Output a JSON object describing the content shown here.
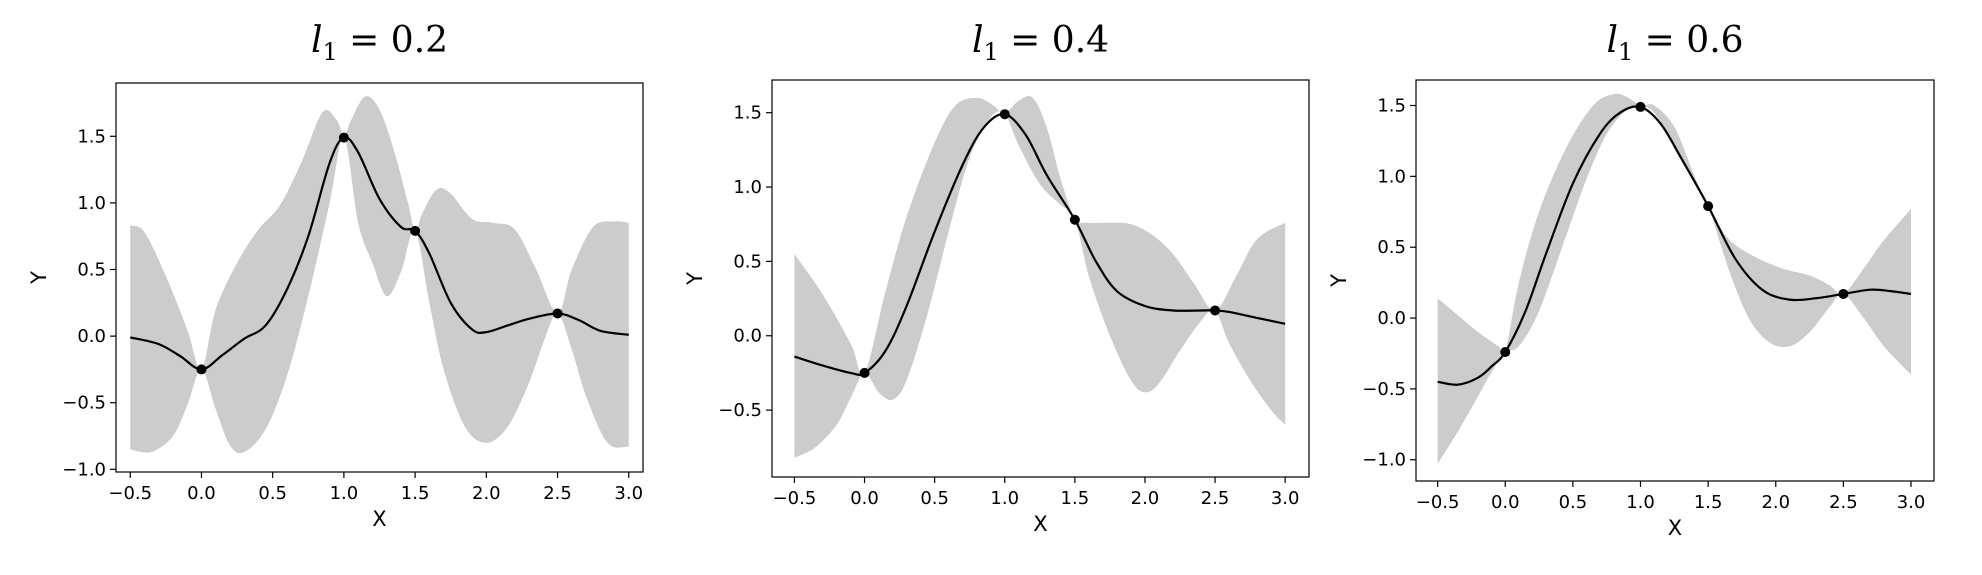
{
  "chart_data": [
    {
      "type": "line",
      "title": "l1 = 0.2",
      "title_parts": {
        "symbol": "l",
        "subscript": "1",
        "rest": " = 0.2"
      },
      "xlabel": "X",
      "ylabel": "Y",
      "xlim": [
        -0.6,
        3.1
      ],
      "ylim": [
        -1.02,
        1.9
      ],
      "xticks": [
        "-0.5",
        "0.0",
        "0.5",
        "1.0",
        "1.5",
        "2.0",
        "2.5",
        "3.0"
      ],
      "yticks": [
        "-1.0",
        "-0.5",
        "0.0",
        "0.5",
        "1.0",
        "1.5"
      ],
      "grid": false,
      "colors": {
        "band": "#cccccc",
        "line": "#000000",
        "points": "#000000"
      },
      "series": [
        {
          "kind": "mean",
          "x": [
            -0.5,
            -0.3,
            -0.15,
            0,
            0.15,
            0.3,
            0.45,
            0.6,
            0.75,
            0.9,
            1.0,
            1.1,
            1.25,
            1.4,
            1.5,
            1.6,
            1.75,
            1.9,
            2.0,
            2.15,
            2.3,
            2.5,
            2.65,
            2.8,
            3.0
          ],
          "y": [
            -0.01,
            -0.06,
            -0.15,
            -0.25,
            -0.14,
            -0.02,
            0.08,
            0.35,
            0.75,
            1.3,
            1.49,
            1.38,
            1.03,
            0.82,
            0.79,
            0.62,
            0.25,
            0.05,
            0.03,
            0.08,
            0.13,
            0.17,
            0.12,
            0.04,
            0.01
          ]
        },
        {
          "kind": "upper_bound",
          "x": [
            -0.5,
            -0.4,
            -0.25,
            -0.1,
            0,
            0.1,
            0.25,
            0.4,
            0.55,
            0.7,
            0.85,
            0.95,
            1.0,
            1.05,
            1.15,
            1.25,
            1.35,
            1.45,
            1.5,
            1.55,
            1.65,
            1.75,
            1.9,
            2.05,
            2.2,
            2.35,
            2.5,
            2.6,
            2.75,
            2.9,
            3.0
          ],
          "y": [
            0.83,
            0.78,
            0.45,
            0.05,
            -0.25,
            0.2,
            0.55,
            0.8,
            0.98,
            1.3,
            1.68,
            1.62,
            1.5,
            1.62,
            1.8,
            1.7,
            1.4,
            1.0,
            0.79,
            0.92,
            1.1,
            1.07,
            0.88,
            0.85,
            0.8,
            0.5,
            0.17,
            0.5,
            0.82,
            0.86,
            0.85
          ]
        },
        {
          "kind": "lower_bound",
          "x": [
            -0.5,
            -0.35,
            -0.2,
            -0.1,
            0,
            0.1,
            0.2,
            0.3,
            0.45,
            0.6,
            0.75,
            0.9,
            1.0,
            1.1,
            1.2,
            1.3,
            1.4,
            1.5,
            1.6,
            1.7,
            1.85,
            2.0,
            2.15,
            2.3,
            2.4,
            2.5,
            2.6,
            2.7,
            2.85,
            3.0
          ],
          "y": [
            -0.85,
            -0.87,
            -0.75,
            -0.52,
            -0.25,
            -0.55,
            -0.82,
            -0.87,
            -0.7,
            -0.3,
            0.3,
            1.0,
            1.49,
            0.85,
            0.55,
            0.3,
            0.48,
            0.79,
            0.25,
            -0.25,
            -0.68,
            -0.8,
            -0.68,
            -0.35,
            -0.05,
            0.17,
            -0.1,
            -0.45,
            -0.8,
            -0.83
          ]
        }
      ],
      "points": {
        "x": [
          0,
          1,
          1.5,
          2.5
        ],
        "y": [
          -0.25,
          1.49,
          0.79,
          0.17
        ]
      }
    },
    {
      "type": "line",
      "title": "l1 = 0.4",
      "title_parts": {
        "symbol": "l",
        "subscript": "1",
        "rest": " = 0.4"
      },
      "xlabel": "X",
      "ylabel": "Y",
      "xlim": [
        -0.66,
        3.17
      ],
      "ylim": [
        -0.95,
        1.72
      ],
      "xticks": [
        "-0.5",
        "0.0",
        "0.5",
        "1.0",
        "1.5",
        "2.0",
        "2.5",
        "3.0"
      ],
      "yticks": [
        "-0.5",
        "0.0",
        "0.5",
        "1.0",
        "1.5"
      ],
      "grid": false,
      "colors": {
        "band": "#cccccc",
        "line": "#000000",
        "points": "#000000"
      },
      "series": [
        {
          "kind": "mean",
          "x": [
            -0.5,
            -0.3,
            -0.1,
            0,
            0.15,
            0.3,
            0.5,
            0.7,
            0.85,
            1.0,
            1.15,
            1.3,
            1.5,
            1.65,
            1.8,
            2.0,
            2.2,
            2.4,
            2.5,
            2.6,
            2.8,
            3.0
          ],
          "y": [
            -0.14,
            -0.2,
            -0.25,
            -0.25,
            -0.1,
            0.2,
            0.7,
            1.15,
            1.4,
            1.49,
            1.35,
            1.08,
            0.78,
            0.5,
            0.3,
            0.2,
            0.17,
            0.17,
            0.17,
            0.16,
            0.12,
            0.08
          ]
        },
        {
          "kind": "upper_bound",
          "x": [
            -0.5,
            -0.3,
            -0.1,
            0,
            0.15,
            0.3,
            0.5,
            0.65,
            0.8,
            0.9,
            1.0,
            1.1,
            1.2,
            1.3,
            1.4,
            1.5,
            1.6,
            1.75,
            1.9,
            2.05,
            2.2,
            2.35,
            2.5,
            2.65,
            2.8,
            3.0
          ],
          "y": [
            0.55,
            0.28,
            -0.05,
            -0.25,
            0.3,
            0.8,
            1.3,
            1.55,
            1.6,
            1.56,
            1.5,
            1.58,
            1.6,
            1.4,
            1.05,
            0.79,
            0.76,
            0.76,
            0.75,
            0.68,
            0.55,
            0.35,
            0.17,
            0.4,
            0.65,
            0.76
          ]
        },
        {
          "kind": "lower_bound",
          "x": [
            -0.5,
            -0.35,
            -0.2,
            -0.1,
            0,
            0.1,
            0.2,
            0.3,
            0.45,
            0.6,
            0.75,
            0.9,
            1.0,
            1.1,
            1.25,
            1.4,
            1.5,
            1.6,
            1.75,
            1.9,
            2.0,
            2.1,
            2.25,
            2.4,
            2.5,
            2.6,
            2.75,
            2.9,
            3.0
          ],
          "y": [
            -0.82,
            -0.75,
            -0.6,
            -0.42,
            -0.25,
            -0.38,
            -0.43,
            -0.3,
            0.15,
            0.7,
            1.2,
            1.47,
            1.49,
            1.28,
            1.02,
            0.88,
            0.79,
            0.4,
            0.0,
            -0.3,
            -0.38,
            -0.32,
            -0.1,
            0.1,
            0.17,
            -0.05,
            -0.3,
            -0.5,
            -0.6
          ]
        }
      ],
      "points": {
        "x": [
          0,
          1,
          1.5,
          2.5
        ],
        "y": [
          -0.25,
          1.49,
          0.78,
          0.17
        ]
      }
    },
    {
      "type": "line",
      "title": "l1 = 0.6",
      "title_parts": {
        "symbol": "l",
        "subscript": "1",
        "rest": " = 0.6"
      },
      "xlabel": "X",
      "ylabel": "Y",
      "xlim": [
        -0.66,
        3.17
      ],
      "ylim": [
        -1.15,
        1.68
      ],
      "xticks": [
        "-0.5",
        "0.0",
        "0.5",
        "1.0",
        "1.5",
        "2.0",
        "2.5",
        "3.0"
      ],
      "yticks": [
        "-1.0",
        "-0.5",
        "0.0",
        "0.5",
        "1.0",
        "1.5"
      ],
      "grid": false,
      "colors": {
        "band": "#cccccc",
        "line": "#000000",
        "points": "#000000"
      },
      "series": [
        {
          "kind": "mean",
          "x": [
            -0.5,
            -0.35,
            -0.2,
            -0.1,
            0,
            0.15,
            0.3,
            0.5,
            0.7,
            0.85,
            1.0,
            1.15,
            1.3,
            1.5,
            1.7,
            1.9,
            2.1,
            2.3,
            2.5,
            2.7,
            2.85,
            3.0
          ],
          "y": [
            -0.45,
            -0.47,
            -0.42,
            -0.34,
            -0.24,
            0.05,
            0.45,
            0.95,
            1.3,
            1.45,
            1.49,
            1.37,
            1.13,
            0.79,
            0.42,
            0.2,
            0.13,
            0.14,
            0.17,
            0.2,
            0.19,
            0.17
          ]
        },
        {
          "kind": "upper_bound",
          "x": [
            -0.5,
            -0.35,
            -0.2,
            -0.05,
            0,
            0.1,
            0.25,
            0.45,
            0.65,
            0.8,
            0.9,
            1.0,
            1.1,
            1.25,
            1.4,
            1.5,
            1.65,
            1.85,
            2.05,
            2.25,
            2.4,
            2.5,
            2.65,
            2.8,
            3.0
          ],
          "y": [
            0.14,
            0.02,
            -0.1,
            -0.2,
            -0.24,
            0.25,
            0.75,
            1.2,
            1.5,
            1.58,
            1.56,
            1.5,
            1.5,
            1.35,
            1.0,
            0.79,
            0.56,
            0.43,
            0.35,
            0.3,
            0.23,
            0.17,
            0.35,
            0.55,
            0.77
          ]
        },
        {
          "kind": "lower_bound",
          "x": [
            -0.5,
            -0.35,
            -0.2,
            -0.1,
            0,
            0.1,
            0.25,
            0.45,
            0.6,
            0.75,
            0.9,
            1.0,
            1.1,
            1.25,
            1.4,
            1.5,
            1.65,
            1.8,
            1.95,
            2.1,
            2.25,
            2.4,
            2.5,
            2.65,
            2.8,
            3.0
          ],
          "y": [
            -1.03,
            -0.8,
            -0.55,
            -0.38,
            -0.24,
            -0.2,
            0.05,
            0.58,
            0.98,
            1.3,
            1.47,
            1.49,
            1.45,
            1.2,
            0.95,
            0.79,
            0.35,
            0.0,
            -0.17,
            -0.2,
            -0.1,
            0.08,
            0.17,
            0.0,
            -0.2,
            -0.4
          ]
        }
      ],
      "points": {
        "x": [
          0,
          1,
          1.5,
          2.5
        ],
        "y": [
          -0.24,
          1.49,
          0.79,
          0.17
        ]
      }
    }
  ]
}
